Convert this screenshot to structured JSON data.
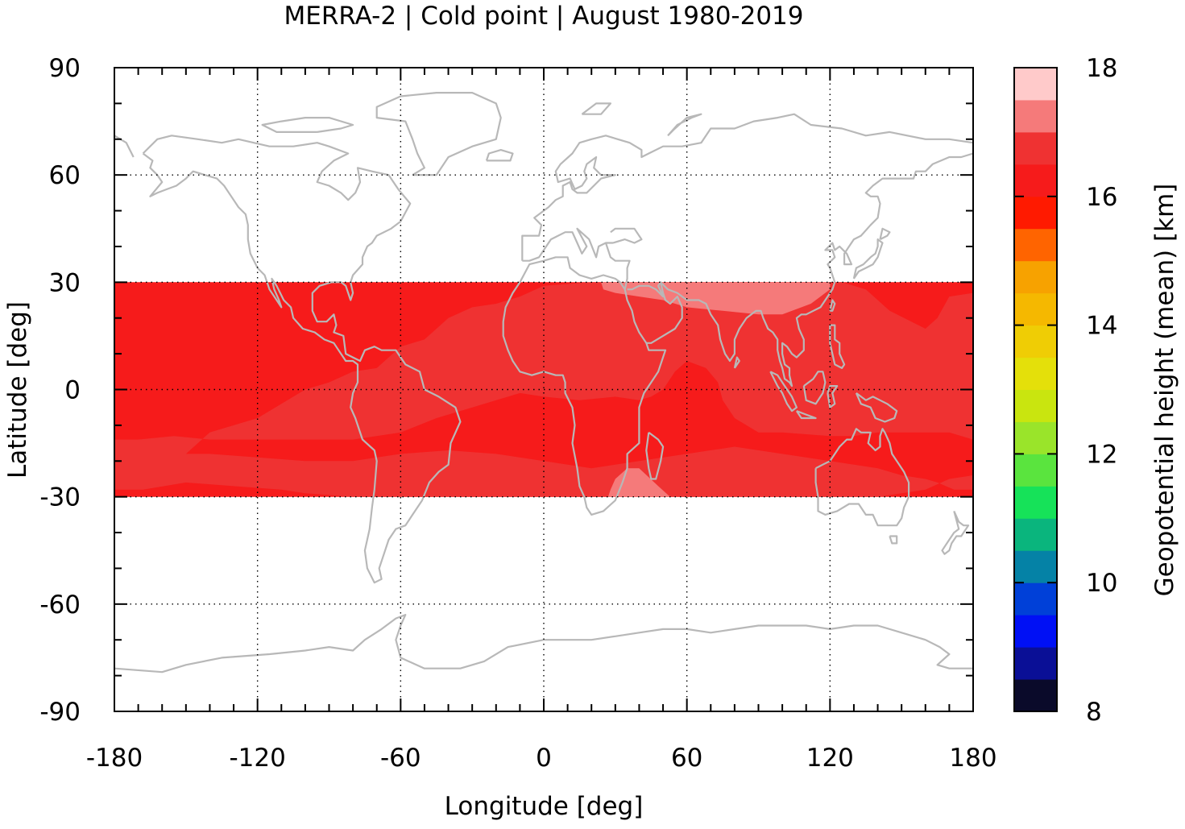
{
  "chart_data": {
    "type": "heatmap",
    "title": "MERRA-2 | Cold point | August 1980-2019",
    "xlabel": "Longitude [deg]",
    "ylabel": "Latitude [deg]",
    "xlim": [
      -180,
      180
    ],
    "ylim": [
      -90,
      90
    ],
    "x_ticks": [
      "-180",
      "-120",
      "-60",
      "0",
      "60",
      "120",
      "180"
    ],
    "y_ticks": [
      "90",
      "60",
      "30",
      "0",
      "-30",
      "-60",
      "-90"
    ],
    "x_tick_values": [
      -180,
      -120,
      -60,
      0,
      60,
      120,
      180
    ],
    "y_tick_values": [
      90,
      60,
      30,
      0,
      -30,
      -60,
      -90
    ],
    "grid": true,
    "data_lat_range": [
      -30,
      30
    ],
    "map_base": "world coastlines",
    "colorbar": {
      "label": "Geopotential height (mean) [km]",
      "range": [
        8,
        18
      ],
      "ticks": [
        "8",
        "10",
        "12",
        "14",
        "16",
        "18"
      ],
      "tick_values": [
        8,
        10,
        12,
        14,
        16,
        18
      ],
      "levels": [
        {
          "from": 8.0,
          "to": 8.5,
          "color": "#0a0a2a"
        },
        {
          "from": 8.5,
          "to": 9.0,
          "color": "#0a0f96"
        },
        {
          "from": 9.0,
          "to": 9.5,
          "color": "#0010f5"
        },
        {
          "from": 9.5,
          "to": 10.0,
          "color": "#0040d8"
        },
        {
          "from": 10.0,
          "to": 10.5,
          "color": "#0582a6"
        },
        {
          "from": 10.5,
          "to": 11.0,
          "color": "#0ab57d"
        },
        {
          "from": 11.0,
          "to": 11.5,
          "color": "#16e259"
        },
        {
          "from": 11.5,
          "to": 12.0,
          "color": "#5ae43e"
        },
        {
          "from": 12.0,
          "to": 12.5,
          "color": "#9ae42a"
        },
        {
          "from": 12.5,
          "to": 13.0,
          "color": "#c9e50f"
        },
        {
          "from": 13.0,
          "to": 13.5,
          "color": "#e4e00a"
        },
        {
          "from": 13.5,
          "to": 14.0,
          "color": "#efcd05"
        },
        {
          "from": 14.0,
          "to": 14.5,
          "color": "#f5b800"
        },
        {
          "from": 14.5,
          "to": 15.0,
          "color": "#f7a200"
        },
        {
          "from": 15.0,
          "to": 15.5,
          "color": "#ff6400"
        },
        {
          "from": 15.5,
          "to": 16.0,
          "color": "#ff1a00"
        },
        {
          "from": 16.0,
          "to": 16.5,
          "color": "#f61b1b"
        },
        {
          "from": 16.5,
          "to": 17.0,
          "color": "#ef3232"
        },
        {
          "from": 17.0,
          "to": 17.5,
          "color": "#f57a7a"
        },
        {
          "from": 17.5,
          "to": 18.0,
          "color": "#ffcaca"
        }
      ]
    },
    "regions": [
      {
        "level": 16.25,
        "polygon": [
          [
            -180,
            -30
          ],
          [
            180,
            -30
          ],
          [
            180,
            30
          ],
          [
            -180,
            30
          ]
        ]
      },
      {
        "level": 16.75,
        "polygon": [
          [
            -150,
            -18
          ],
          [
            -140,
            -12
          ],
          [
            -120,
            -8
          ],
          [
            -110,
            -4
          ],
          [
            -100,
            0
          ],
          [
            -90,
            2
          ],
          [
            -80,
            5
          ],
          [
            -70,
            6
          ],
          [
            -60,
            12
          ],
          [
            -50,
            14
          ],
          [
            -40,
            20
          ],
          [
            -30,
            23
          ],
          [
            -20,
            24
          ],
          [
            -10,
            26
          ],
          [
            0,
            29
          ],
          [
            20,
            30
          ],
          [
            60,
            30
          ],
          [
            90,
            30
          ],
          [
            110,
            30
          ],
          [
            125,
            30
          ],
          [
            135,
            28
          ],
          [
            145,
            22
          ],
          [
            160,
            17
          ],
          [
            165,
            20
          ],
          [
            170,
            26
          ],
          [
            180,
            27
          ],
          [
            180,
            -14
          ],
          [
            170,
            -12
          ],
          [
            160,
            -12
          ],
          [
            140,
            -12
          ],
          [
            130,
            -13
          ],
          [
            120,
            -13
          ],
          [
            100,
            -12
          ],
          [
            90,
            -12
          ],
          [
            80,
            -8
          ],
          [
            75,
            -3
          ],
          [
            73,
            2
          ],
          [
            68,
            6
          ],
          [
            60,
            8
          ],
          [
            55,
            5
          ],
          [
            50,
            0
          ],
          [
            45,
            -2
          ],
          [
            40,
            -3
          ],
          [
            30,
            -2
          ],
          [
            15,
            -3
          ],
          [
            0,
            -2
          ],
          [
            -10,
            -1
          ],
          [
            -20,
            -3
          ],
          [
            -30,
            -5
          ],
          [
            -45,
            -8
          ],
          [
            -60,
            -12
          ],
          [
            -80,
            -14
          ],
          [
            -100,
            -14
          ],
          [
            -120,
            -14
          ],
          [
            -140,
            -14
          ],
          [
            -155,
            -13
          ],
          [
            -170,
            -14
          ],
          [
            -180,
            -14
          ],
          [
            -180,
            -28
          ],
          [
            -168,
            -28
          ],
          [
            -150,
            -26
          ],
          [
            -130,
            -27
          ],
          [
            -110,
            -28
          ],
          [
            -100,
            -29
          ],
          [
            -80,
            -30
          ],
          [
            -60,
            -30
          ],
          [
            -40,
            -30
          ],
          [
            -20,
            -30
          ],
          [
            0,
            -30
          ],
          [
            20,
            -30
          ],
          [
            60,
            -30
          ],
          [
            100,
            -30
          ],
          [
            120,
            -30
          ],
          [
            140,
            -30
          ],
          [
            160,
            -28
          ],
          [
            170,
            -25
          ],
          [
            180,
            -24
          ],
          [
            180,
            -28
          ],
          [
            172,
            -28
          ],
          [
            165,
            -26
          ],
          [
            160,
            -25
          ],
          [
            150,
            -24
          ],
          [
            140,
            -22
          ],
          [
            120,
            -20
          ],
          [
            100,
            -18
          ],
          [
            80,
            -16
          ],
          [
            60,
            -18
          ],
          [
            40,
            -20
          ],
          [
            20,
            -22
          ],
          [
            0,
            -20
          ],
          [
            -20,
            -18
          ],
          [
            -40,
            -17
          ],
          [
            -60,
            -18
          ],
          [
            -80,
            -20
          ],
          [
            -100,
            -20
          ],
          [
            -120,
            -19
          ],
          [
            -140,
            -18
          ]
        ]
      },
      {
        "level": 17.25,
        "polygon": [
          [
            24,
            30
          ],
          [
            120,
            30
          ],
          [
            120,
            28
          ],
          [
            112,
            24
          ],
          [
            100,
            21
          ],
          [
            90,
            21
          ],
          [
            75,
            22
          ],
          [
            60,
            23
          ],
          [
            50,
            25
          ],
          [
            40,
            26
          ],
          [
            30,
            27
          ],
          [
            25,
            28
          ]
        ]
      },
      {
        "level": 17.25,
        "polygon": [
          [
            27,
            -30
          ],
          [
            53,
            -30
          ],
          [
            48,
            -27
          ],
          [
            40,
            -22
          ],
          [
            35,
            -22
          ],
          [
            30,
            -25
          ],
          [
            28,
            -28
          ]
        ]
      }
    ]
  }
}
